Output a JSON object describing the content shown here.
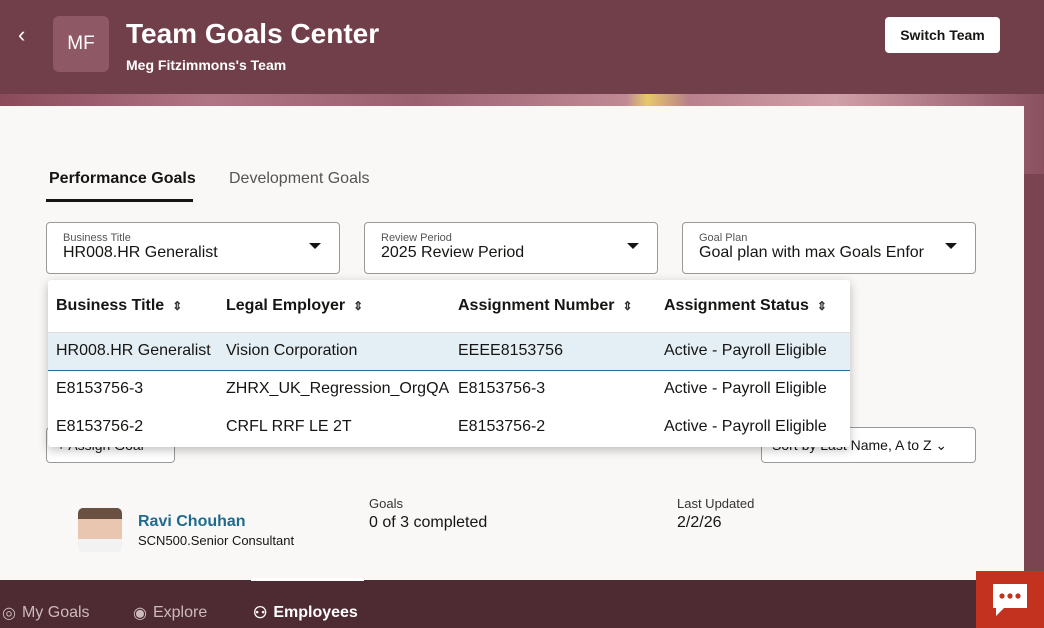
{
  "header": {
    "title": "Team Goals Center",
    "subtitle": "Meg Fitzimmons's Team",
    "avatar_initials": "MF",
    "switch_team": "Switch Team"
  },
  "tabs": [
    {
      "label": "Performance Goals",
      "active": true
    },
    {
      "label": "Development Goals",
      "active": false
    }
  ],
  "filters": [
    {
      "label": "Business Title",
      "value": "HR008.HR Generalist"
    },
    {
      "label": "Review Period",
      "value": "2025 Review Period"
    },
    {
      "label": "Goal Plan",
      "value": "Goal plan with max Goals Enforced"
    }
  ],
  "popup": {
    "columns": [
      "Business Title",
      "Legal Employer",
      "Assignment Number",
      "Assignment Status"
    ],
    "rows": [
      [
        "HR008.HR Generalist",
        "Vision Corporation",
        "EEEE8153756",
        "Active - Payroll Eligible"
      ],
      [
        "E8153756-3",
        "ZHRX_UK_Regression_OrgQA",
        "E8153756-3",
        "Active - Payroll Eligible"
      ],
      [
        "E8153756-2",
        "CRFL RRF LE 2T",
        "E8153756-2",
        "Active - Payroll Eligible"
      ]
    ]
  },
  "actions": {
    "assign_goal": "+ Assign Goal",
    "sort": "Sort by Last Name, A to Z"
  },
  "employee": {
    "name": "Ravi Chouhan",
    "title": "SCN500.Senior Consultant",
    "goals_label": "Goals",
    "goals_value": "0 of 3 completed",
    "updated_label": "Last Updated",
    "updated_value": "2/2/26"
  },
  "bottom_nav": [
    {
      "label": "My Goals",
      "icon": "target-icon"
    },
    {
      "label": "Explore",
      "icon": "eye-icon"
    },
    {
      "label": "Employees",
      "icon": "people-icon",
      "active": true
    }
  ],
  "colors": {
    "header": "#703f4a",
    "bottom_bar": "#4e2a33",
    "chat": "#c2321f",
    "link": "#1f6b8e"
  }
}
